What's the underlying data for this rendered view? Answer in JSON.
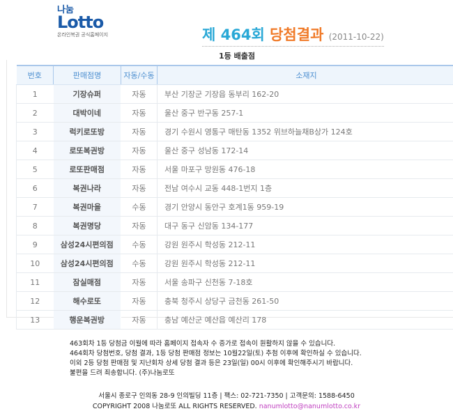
{
  "logo": {
    "top": "나눔",
    "main": "Lotto",
    "tagline": "온라인복권 공식홈페이지"
  },
  "header": {
    "prefix": "제 464회",
    "result": "당첨결과",
    "date": "(2011-10-22)"
  },
  "section_title": "1등 배출점",
  "table": {
    "columns": [
      "번호",
      "판매점명",
      "자동/수동",
      "소재지"
    ],
    "rows": [
      [
        "1",
        "기장슈퍼",
        "자동",
        "부산 기장군 기장읍 동부리 162-20"
      ],
      [
        "2",
        "대박이네",
        "자동",
        "울산 중구 반구동 257-1"
      ],
      [
        "3",
        "럭키로또방",
        "자동",
        "경기 수원시 영통구 매탄동 1352 위브하늘채B상가 124호"
      ],
      [
        "4",
        "로또복권방",
        "자동",
        "울산 중구 성남동 172-14"
      ],
      [
        "5",
        "로또판매점",
        "자동",
        "서울 마포구 망원동 476-18"
      ],
      [
        "6",
        "복권나라",
        "자동",
        "전남 여수시 교동 448-1번지 1층"
      ],
      [
        "7",
        "복권마을",
        "수동",
        "경기 안양시 동안구 호계1동 959-19"
      ],
      [
        "8",
        "복권명당",
        "자동",
        "대구 동구 신암동 134-177"
      ],
      [
        "9",
        "삼성24시편의점",
        "수동",
        "강원 원주시 학성동 212-11"
      ],
      [
        "10",
        "삼성24시편의점",
        "수동",
        "강원 원주시 학성동 212-11"
      ],
      [
        "11",
        "잠실매점",
        "자동",
        "서울 송파구 신천동 7-18호"
      ],
      [
        "12",
        "해수로또",
        "자동",
        "충북 청주시 상당구 금천동 261-50"
      ],
      [
        "13",
        "행운복권방",
        "자동",
        "충남 예산군 예산읍 예산리 178"
      ]
    ]
  },
  "notice": [
    "463회차 1등 당첨금 이월에 따라 홈페이지 접속자 수 증가로 접속이 원활하지 않을 수 있습니다.",
    "464회차 당첨번호, 당첨 결과, 1등 당첨 판매점 정보는 10월22일(토) 추첨 이후에 확인하실 수 있습니다.",
    "이외 2등 당첨 판매점 및 지난회차 상세 당첨 결과 등은 23일(일) 00시 이후에 확인해주시기 바랍니다.",
    "불편을 드려 죄송합니다. (주)나눔로또"
  ],
  "footer": {
    "address": "서울시 종로구 인의동 28-9 인의빌딩 11층 | 팩스: 02-721-7350 | 고객문의: 1588-6450",
    "copyright": "COPYRIGHT 2008 나눔로또 ALL RIGHTS RESERVED.",
    "email": "nanumlotto@nanumlotto.co.kr"
  }
}
